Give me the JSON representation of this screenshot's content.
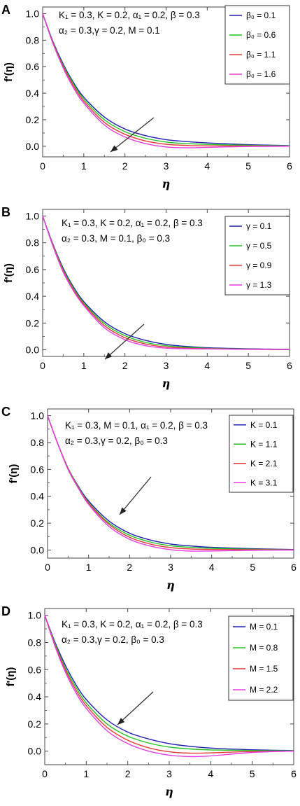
{
  "chart_data": [
    {
      "panel": "A",
      "type": "line",
      "xlabel": "η",
      "ylabel": "f'(η)",
      "xlim": [
        0,
        6
      ],
      "ylim": [
        -0.08,
        1.05
      ],
      "xticks": [
        "0",
        "1",
        "2",
        "3",
        "4",
        "5",
        "6"
      ],
      "yticks": [
        "0.0",
        "0.2",
        "0.4",
        "0.6",
        "0.8",
        "1.0"
      ],
      "annotation": [
        "K₁ = 0.3, K = 0.2, α₁ = 0.2, β = 0.3",
        "α₂ = 0.3,γ = 0.2, M = 0.1"
      ],
      "legend_position": "top-right",
      "x": [
        0,
        0.25,
        0.5,
        0.75,
        1,
        1.5,
        2,
        2.5,
        3,
        3.5,
        4,
        5,
        6
      ],
      "series": [
        {
          "name": "β₀ = 0.1",
          "color": "#1f1fb4",
          "values": [
            1.0,
            0.79,
            0.62,
            0.48,
            0.37,
            0.22,
            0.13,
            0.08,
            0.05,
            0.035,
            0.025,
            0.012,
            0.005
          ]
        },
        {
          "name": "β₀ = 0.6",
          "color": "#22c422",
          "values": [
            1.0,
            0.785,
            0.61,
            0.47,
            0.355,
            0.2,
            0.11,
            0.06,
            0.032,
            0.02,
            0.014,
            0.007,
            0.003
          ]
        },
        {
          "name": "β₀ = 1.1",
          "color": "#e83a3a",
          "values": [
            1.0,
            0.78,
            0.6,
            0.455,
            0.34,
            0.18,
            0.09,
            0.04,
            0.015,
            0.006,
            0.003,
            0.002,
            0.001
          ]
        },
        {
          "name": "β₀ = 1.6",
          "color": "#e83ae8",
          "values": [
            1.0,
            0.775,
            0.59,
            0.44,
            0.325,
            0.16,
            0.07,
            0.02,
            -0.005,
            -0.012,
            -0.008,
            -0.002,
            0.0
          ]
        }
      ]
    },
    {
      "panel": "B",
      "type": "line",
      "xlabel": "η",
      "ylabel": "f'(η)",
      "xlim": [
        0,
        6
      ],
      "ylim": [
        -0.05,
        1.05
      ],
      "xticks": [
        "0",
        "1",
        "2",
        "3",
        "4",
        "5",
        "6"
      ],
      "yticks": [
        "0.0",
        "0.2",
        "0.4",
        "0.6",
        "0.8",
        "1.0"
      ],
      "annotation": [
        "K₁ = 0.3, K = 0.2, α₁ = 0.2, β = 0.3",
        "α₂ = 0.3, M = 0.1, β₀ = 0.3"
      ],
      "legend_position": "top-right",
      "x": [
        0,
        0.25,
        0.5,
        0.75,
        1,
        1.5,
        2,
        2.5,
        3,
        3.5,
        4,
        5,
        6
      ],
      "series": [
        {
          "name": "γ = 0.1",
          "color": "#1f1fb4",
          "values": [
            1.0,
            0.79,
            0.61,
            0.47,
            0.36,
            0.21,
            0.12,
            0.07,
            0.04,
            0.025,
            0.015,
            0.007,
            0.003
          ]
        },
        {
          "name": "γ = 0.5",
          "color": "#22c422",
          "values": [
            1.0,
            0.785,
            0.6,
            0.46,
            0.35,
            0.195,
            0.105,
            0.055,
            0.03,
            0.018,
            0.011,
            0.005,
            0.002
          ]
        },
        {
          "name": "γ = 0.9",
          "color": "#e83a3a",
          "values": [
            1.0,
            0.78,
            0.59,
            0.45,
            0.34,
            0.18,
            0.09,
            0.043,
            0.02,
            0.012,
            0.008,
            0.004,
            0.002
          ]
        },
        {
          "name": "γ = 1.3",
          "color": "#e83ae8",
          "values": [
            1.0,
            0.775,
            0.58,
            0.44,
            0.33,
            0.165,
            0.075,
            0.03,
            0.012,
            0.007,
            0.006,
            0.003,
            0.001
          ]
        }
      ]
    },
    {
      "panel": "C",
      "type": "line",
      "xlabel": "η",
      "ylabel": "f'(η)",
      "xlim": [
        0,
        6
      ],
      "ylim": [
        -0.06,
        1.05
      ],
      "xticks": [
        "0",
        "1",
        "2",
        "3",
        "4",
        "5",
        "6"
      ],
      "yticks": [
        "0.0",
        "0.2",
        "0.4",
        "0.6",
        "0.8",
        "1.0"
      ],
      "annotation": [
        "K₁ = 0.3, M = 0.1, α₁ = 0.2, β = 0.3",
        "α₂ = 0.3,γ = 0.2, β₀ = 0.3"
      ],
      "legend_position": "top-right",
      "x": [
        0,
        0.25,
        0.5,
        0.75,
        1,
        1.5,
        2,
        2.5,
        3,
        3.5,
        4,
        5,
        6
      ],
      "series": [
        {
          "name": "K = 0.1",
          "color": "#1f1fb4",
          "values": [
            1.0,
            0.79,
            0.61,
            0.475,
            0.365,
            0.215,
            0.125,
            0.075,
            0.045,
            0.03,
            0.02,
            0.01,
            0.004
          ]
        },
        {
          "name": "K = 1.1",
          "color": "#22c422",
          "values": [
            1.0,
            0.79,
            0.61,
            0.47,
            0.355,
            0.2,
            0.11,
            0.06,
            0.032,
            0.02,
            0.013,
            0.006,
            0.002
          ]
        },
        {
          "name": "K = 2.1",
          "color": "#e83a3a",
          "values": [
            1.0,
            0.79,
            0.605,
            0.465,
            0.348,
            0.19,
            0.095,
            0.045,
            0.018,
            0.008,
            0.004,
            0.002,
            0.001
          ]
        },
        {
          "name": "K = 3.1",
          "color": "#e83ae8",
          "values": [
            1.0,
            0.79,
            0.6,
            0.46,
            0.34,
            0.175,
            0.08,
            0.03,
            0.003,
            -0.008,
            -0.007,
            -0.002,
            0.0
          ]
        }
      ]
    },
    {
      "panel": "D",
      "type": "line",
      "xlabel": "η",
      "ylabel": "f'(η)",
      "xlim": [
        0,
        6
      ],
      "ylim": [
        -0.1,
        1.05
      ],
      "xticks": [
        "0",
        "1",
        "2",
        "3",
        "4",
        "5",
        "6"
      ],
      "yticks": [
        "0.0",
        "0.2",
        "0.4",
        "0.6",
        "0.8",
        "1.0"
      ],
      "annotation": [
        "K₁ = 0.3, K = 0.2, α₁ = 0.2, β = 0.3",
        "α₂ = 0.3,γ = 0.2, β₀ = 0.3"
      ],
      "legend_position": "top-right",
      "x": [
        0,
        0.25,
        0.5,
        0.75,
        1,
        1.5,
        2,
        2.5,
        3,
        3.5,
        4,
        5,
        6
      ],
      "series": [
        {
          "name": "M = 0.1",
          "color": "#1f1fb4",
          "values": [
            1.0,
            0.8,
            0.63,
            0.49,
            0.38,
            0.23,
            0.14,
            0.09,
            0.055,
            0.035,
            0.022,
            0.01,
            0.004
          ]
        },
        {
          "name": "M = 0.8",
          "color": "#22c422",
          "values": [
            1.0,
            0.79,
            0.61,
            0.47,
            0.355,
            0.2,
            0.11,
            0.06,
            0.03,
            0.016,
            0.009,
            0.004,
            0.002
          ]
        },
        {
          "name": "M = 1.5",
          "color": "#e83a3a",
          "values": [
            1.0,
            0.78,
            0.595,
            0.45,
            0.335,
            0.175,
            0.08,
            0.025,
            -0.005,
            -0.015,
            -0.013,
            -0.003,
            0.0
          ]
        },
        {
          "name": "M = 2.2",
          "color": "#e83ae8",
          "values": [
            1.0,
            0.77,
            0.58,
            0.43,
            0.315,
            0.15,
            0.055,
            0.0,
            -0.03,
            -0.04,
            -0.035,
            -0.01,
            0.0
          ]
        }
      ]
    }
  ]
}
